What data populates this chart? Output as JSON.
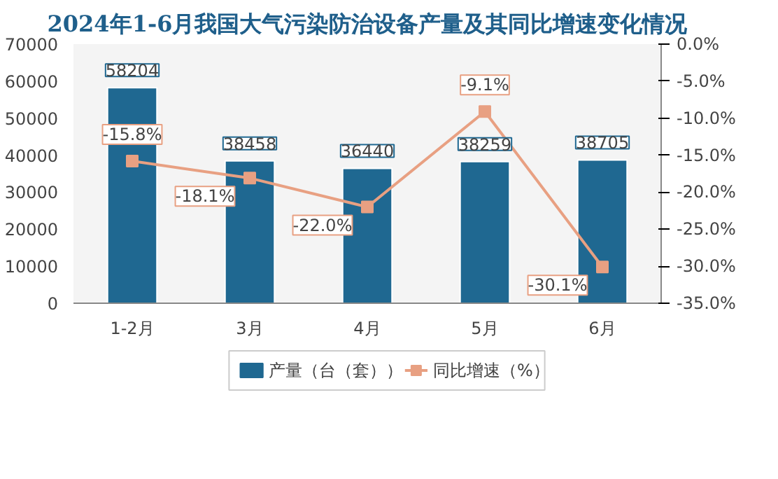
{
  "chart_data": {
    "type": "bar",
    "title": "2024年1-6月我国大气污染防治设备产量及其同比增速变化情况",
    "categories": [
      "1-2月",
      "3月",
      "4月",
      "5月",
      "6月"
    ],
    "series": [
      {
        "name": "产量（台（套））",
        "color": "#1f6891",
        "values": [
          58204,
          38458,
          36440,
          38259,
          38705
        ],
        "value_labels": [
          "58204",
          "38458",
          "36440",
          "38259",
          "38705"
        ]
      },
      {
        "name": "同比增速（%）",
        "type": "line",
        "axis": "y2",
        "color": "#e8a082",
        "marker": "square",
        "values": [
          -15.8,
          -18.1,
          -22.0,
          -9.1,
          -30.1
        ],
        "value_labels": [
          "-15.8%",
          "-18.1%",
          "-22.0%",
          "-9.1%",
          "-30.1%"
        ]
      }
    ],
    "ylim": [
      0,
      70000
    ],
    "yticks": [
      0,
      10000,
      20000,
      30000,
      40000,
      50000,
      60000,
      70000
    ],
    "y2lim": [
      -35,
      0
    ],
    "y2ticks": [
      {
        "value": 0,
        "label": "0.0%"
      },
      {
        "value": -5,
        "label": "-5.0%"
      },
      {
        "value": -10,
        "label": "-10.0%"
      },
      {
        "value": -15,
        "label": "-15.0%"
      },
      {
        "value": -20,
        "label": "-20.0%"
      },
      {
        "value": -25,
        "label": "-25.0%"
      },
      {
        "value": -30,
        "label": "-30.0%"
      },
      {
        "value": -35,
        "label": "-35.0%"
      }
    ],
    "grid": false,
    "legend": "bottom"
  }
}
